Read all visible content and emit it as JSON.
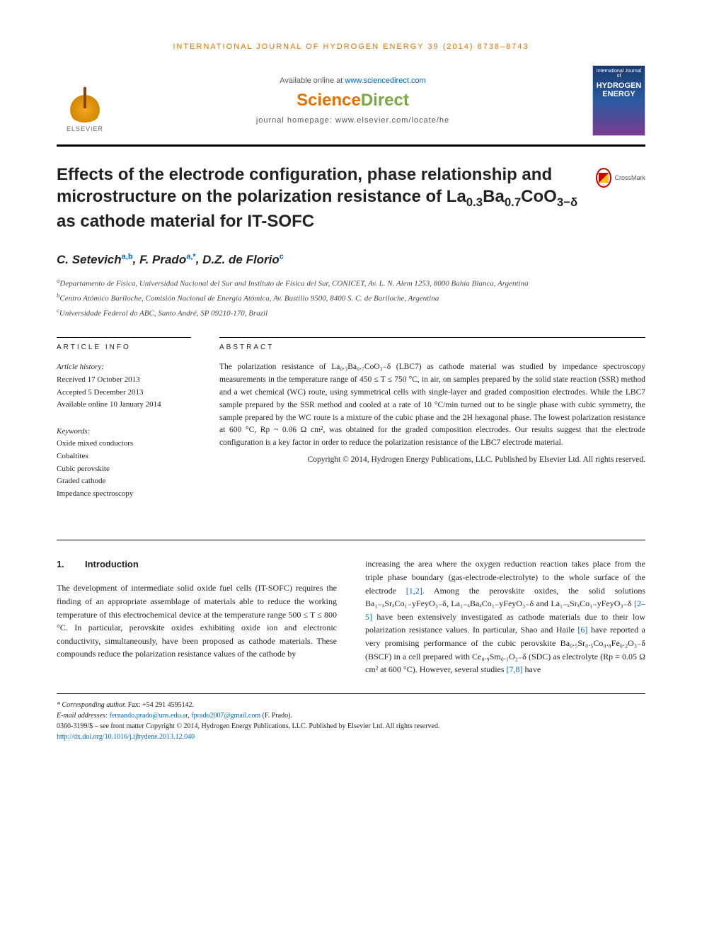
{
  "journal_citation": "INTERNATIONAL JOURNAL OF HYDROGEN ENERGY 39 (2014) 8738–8743",
  "available_text": "Available online at ",
  "sd_url": "www.sciencedirect.com",
  "sd_brand_a": "Science",
  "sd_brand_b": "Direct",
  "homepage_label": "journal homepage: www.elsevier.com/locate/he",
  "elsevier_label": "ELSEVIER",
  "cover": {
    "line1": "International Journal of",
    "line2": "HYDROGEN",
    "line3": "ENERGY"
  },
  "crossmark_label": "CrossMark",
  "title_parts": {
    "pre": "Effects of the electrode configuration, phase relationship and microstructure on the polarization resistance of La",
    "s1": "0.3",
    "mid1": "Ba",
    "s2": "0.7",
    "mid2": "CoO",
    "s3": "3−δ",
    "post": " as cathode material for IT-SOFC"
  },
  "authors": [
    {
      "name": "C. Setevich",
      "sup": "a,b"
    },
    {
      "name": "F. Prado",
      "sup": "a,*"
    },
    {
      "name": "D.Z. de Florio",
      "sup": "c"
    }
  ],
  "affiliations": [
    {
      "sup": "a",
      "text": "Departamento de Física, Universidad Nacional del Sur and Instituto de Física del Sur, CONICET, Av. L. N. Alem 1253, 8000 Bahía Blanca, Argentina"
    },
    {
      "sup": "b",
      "text": "Centro Atómico Bariloche, Comisión Nacional de Energía Atómica, Av. Bustillo 9500, 8400 S. C. de Bariloche, Argentina"
    },
    {
      "sup": "c",
      "text": "Universidade Federal do ABC, Santo André, SP 09210-170, Brazil"
    }
  ],
  "info_heading": "ARTICLE INFO",
  "history_label": "Article history:",
  "history": {
    "received": "Received 17 October 2013",
    "accepted": "Accepted 5 December 2013",
    "online": "Available online 10 January 2014"
  },
  "keywords_label": "Keywords:",
  "keywords": [
    "Oxide mixed conductors",
    "Cobaltites",
    "Cubic perovskite",
    "Graded cathode",
    "Impedance spectroscopy"
  ],
  "abstract_heading": "ABSTRACT",
  "abstract_text": "The polarization resistance of La₀.₃Ba₀.₇CoO₃₋δ (LBC7) as cathode material was studied by impedance spectroscopy measurements in the temperature range of 450 ≤ T ≤ 750 °C, in air, on samples prepared by the solid state reaction (SSR) method and a wet chemical (WC) route, using symmetrical cells with single-layer and graded composition electrodes. While the LBC7 sample prepared by the SSR method and cooled at a rate of 10 °C/min turned out to be single phase with cubic symmetry, the sample prepared by the WC route is a mixture of the cubic phase and the 2H hexagonal phase. The lowest polarization resistance at 600 °C, Rp ~ 0.06 Ω cm², was obtained for the graded composition electrodes. Our results suggest that the electrode configuration is a key factor in order to reduce the polarization resistance of the LBC7 electrode material.",
  "copyright": "Copyright © 2014, Hydrogen Energy Publications, LLC. Published by Elsevier Ltd. All rights reserved.",
  "section1": {
    "num": "1.",
    "title": "Introduction"
  },
  "body_col1": "The development of intermediate solid oxide fuel cells (IT-SOFC) requires the finding of an appropriate assemblage of materials able to reduce the working temperature of this electrochemical device at the temperature range 500 ≤ T ≤ 800 °C. In particular, perovskite oxides exhibiting oxide ion and electronic conductivity, simultaneously, have been proposed as cathode materials. These compounds reduce the polarization resistance values of the cathode by",
  "body_col2_a": "increasing the area where the oxygen reduction reaction takes place from the triple phase boundary (gas-electrode-electrolyte) to the whole surface of the electrode ",
  "ref12": "[1,2]",
  "body_col2_b": ". Among the perovskite oxides, the solid solutions Ba₁₋ₓSrₓCo₁₋yFeyO₃₋δ, La₁₋ₓBaₓCo₁₋yFeyO₃₋δ and La₁₋ₓSrₓCo₁₋yFeyO₃₋δ ",
  "ref25": "[2–5]",
  "body_col2_c": " have been extensively investigated as cathode materials due to their low polarization resistance values. In particular, Shao and Haile ",
  "ref6": "[6]",
  "body_col2_d": " have reported a very promising performance of the cubic perovskite Ba₀.₅Sr₀.₅Co₀.₈Fe₀.₂O₃₋δ (BSCF) in a cell prepared with Ce₀.₉Sm₀.₁O₂₋δ (SDC) as electrolyte (Rp = 0.05 Ω cm² at 600 °C). However, several studies ",
  "ref78": "[7,8]",
  "body_col2_e": " have",
  "footnotes": {
    "corr_label": "* Corresponding author.",
    "corr_fax": " Fax: +54 291 4595142.",
    "email_label": "E-mail addresses: ",
    "email1": "fernando.prado@uns.edu.ar",
    "email2": "fprado2007@gmail.com",
    "email_who": " (F. Prado).",
    "issn_line": "0360-3199/$ – see front matter Copyright © 2014, Hydrogen Energy Publications, LLC. Published by Elsevier Ltd. All rights reserved.",
    "doi": "http://dx.doi.org/10.1016/j.ijhydene.2013.12.040"
  }
}
